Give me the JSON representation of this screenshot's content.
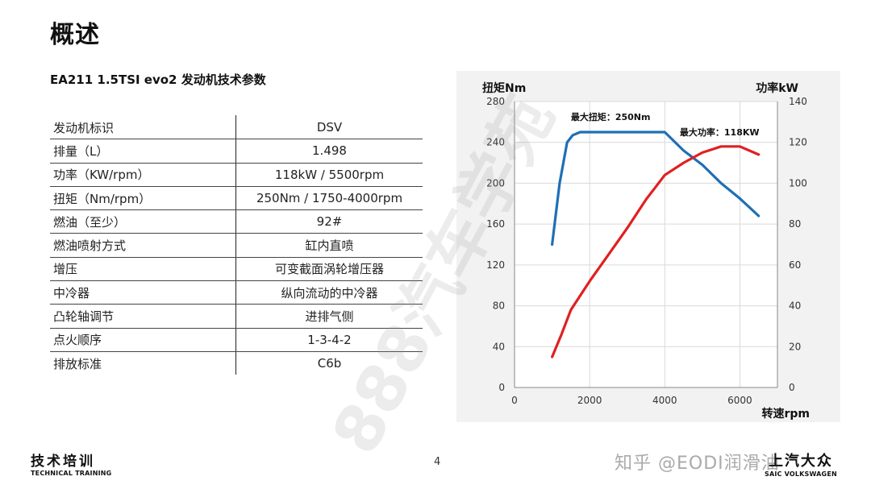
{
  "page": {
    "title": "概述",
    "section_title": "EA211 1.5TSI evo2 发动机技术参数",
    "page_number": "4"
  },
  "spec_table": {
    "rows": [
      {
        "label": "发动机标识",
        "value": "DSV"
      },
      {
        "label": "排量（L）",
        "value": "1.498"
      },
      {
        "label": "功率（KW/rpm）",
        "value": "118kW / 5500rpm"
      },
      {
        "label": "扭矩（Nm/rpm）",
        "value": "250Nm / 1750-4000rpm"
      },
      {
        "label": "燃油（至少）",
        "value": "92#"
      },
      {
        "label": "燃油喷射方式",
        "value": "缸内直喷"
      },
      {
        "label": "增压",
        "value": "可变截面涡轮增压器"
      },
      {
        "label": "中冷器",
        "value": "纵向流动的中冷器"
      },
      {
        "label": "凸轮轴调节",
        "value": "进排气侧"
      },
      {
        "label": "点火顺序",
        "value": "1-3-4-2"
      },
      {
        "label": "排放标准",
        "value": "C6b"
      }
    ]
  },
  "chart_data": {
    "type": "line",
    "xlabel": "转速rpm",
    "ylabel_left": "扭矩Nm",
    "ylabel_right": "功率kW",
    "xlim": [
      0,
      7000
    ],
    "ylim_left": [
      0,
      280
    ],
    "ylim_right": [
      0,
      140
    ],
    "x_ticks": [
      0,
      2000,
      4000,
      6000
    ],
    "y_ticks_left": [
      0,
      40,
      80,
      120,
      160,
      200,
      240,
      280
    ],
    "y_ticks_right": [
      0,
      20,
      40,
      60,
      80,
      100,
      120,
      140
    ],
    "grid": true,
    "series": [
      {
        "name": "扭矩",
        "axis": "left",
        "color": "#1f6fb5",
        "points": [
          [
            1000,
            140
          ],
          [
            1200,
            200
          ],
          [
            1400,
            240
          ],
          [
            1550,
            247
          ],
          [
            1750,
            250
          ],
          [
            2500,
            250
          ],
          [
            3500,
            250
          ],
          [
            4000,
            250
          ],
          [
            4500,
            232
          ],
          [
            5000,
            218
          ],
          [
            5500,
            200
          ],
          [
            6000,
            185
          ],
          [
            6500,
            168
          ]
        ]
      },
      {
        "name": "功率",
        "axis": "right",
        "color": "#e02020",
        "points": [
          [
            1000,
            15
          ],
          [
            1250,
            26
          ],
          [
            1500,
            38
          ],
          [
            2000,
            52
          ],
          [
            2500,
            65
          ],
          [
            3000,
            78
          ],
          [
            3500,
            92
          ],
          [
            4000,
            104
          ],
          [
            4500,
            110
          ],
          [
            5000,
            115
          ],
          [
            5500,
            118
          ],
          [
            6000,
            118
          ],
          [
            6500,
            114
          ]
        ]
      }
    ],
    "annotations": [
      {
        "text": "最大扭矩：250Nm",
        "x": 1500,
        "y_left": 262
      },
      {
        "text": "最大功率：118KW",
        "x": 4400,
        "y_left": 247
      }
    ]
  },
  "overlay_watermark": "888汽车学苑",
  "footer": {
    "left_cn": "技术培训",
    "left_en": "TECHNICAL TRAINING",
    "watermark": "知乎 @EODI润滑油",
    "right_cn": "上汽大众",
    "right_en": "SAIC VOLKSWAGEN"
  }
}
